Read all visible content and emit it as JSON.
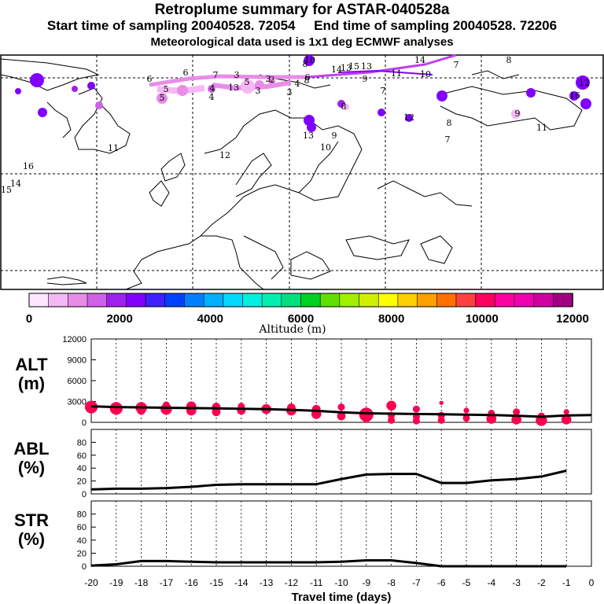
{
  "header": {
    "title": "Retroplume summary for ASTAR-040528a",
    "sampling": "Start time of sampling 20040528. 72054     End time of sampling 20040528. 72206",
    "met": "Meteorological data used is 1x1 deg ECMWF analyses"
  },
  "map": {
    "label_numbers": [
      "6",
      "5",
      "5",
      "4",
      "4",
      "7",
      "3",
      "13",
      "3",
      "5",
      "3",
      "3",
      "4",
      "6",
      "6",
      "2",
      "10",
      "8",
      "9",
      "11",
      "13",
      "14",
      "7",
      "8",
      "10",
      "12",
      "7",
      "16",
      "13",
      "14",
      "15",
      "12",
      "8",
      "11",
      "9",
      "9",
      "7",
      "8",
      "8",
      "10",
      "11",
      "12",
      "14",
      "15",
      "16",
      "13"
    ]
  },
  "colorbar": {
    "ticks": [
      "0",
      "2000",
      "4000",
      "6000",
      "8000",
      "10000",
      "12000"
    ],
    "label": "Altitude (m)",
    "colors": [
      "#ffe6ff",
      "#f4b8f4",
      "#e88ce8",
      "#d060e8",
      "#a020f0",
      "#8000ff",
      "#4020ff",
      "#0040ff",
      "#0080ff",
      "#00b0ff",
      "#00d8ff",
      "#00f0e0",
      "#00f0b0",
      "#00e080",
      "#00d020",
      "#60e000",
      "#a0f000",
      "#d0f000",
      "#ffff00",
      "#ffd000",
      "#ffa000",
      "#ff7000",
      "#ff4040",
      "#ff0060",
      "#ff00a0",
      "#f000b0",
      "#d000a0",
      "#a00080"
    ]
  },
  "chart_data": [
    {
      "type": "line",
      "ylabel": "ALT\n(m)",
      "xlabel": "Travel time (days)",
      "x": [
        -20,
        -19,
        -18,
        -17,
        -16,
        -15,
        -14,
        -13,
        -12,
        -11,
        -10,
        -9,
        -8,
        -7,
        -6,
        -5,
        -4,
        -3,
        -2,
        -1,
        0
      ],
      "values": [
        2300,
        2200,
        2150,
        2100,
        2050,
        2000,
        1950,
        1900,
        1800,
        1650,
        1450,
        1300,
        1250,
        1200,
        1150,
        1100,
        1050,
        950,
        800,
        1000,
        1050
      ],
      "ylim": [
        0,
        12000
      ],
      "yticks": [
        "12000",
        "9000",
        "6000",
        "3000",
        "0"
      ],
      "dots": [
        {
          "x": -20,
          "y": 2200,
          "s": 9
        },
        {
          "x": -19,
          "y": 2000,
          "s": 9
        },
        {
          "x": -19,
          "y": 1800,
          "s": 6
        },
        {
          "x": -18,
          "y": 2100,
          "s": 8
        },
        {
          "x": -18,
          "y": 1700,
          "s": 6
        },
        {
          "x": -17,
          "y": 2500,
          "s": 5
        },
        {
          "x": -17,
          "y": 1900,
          "s": 8
        },
        {
          "x": -16,
          "y": 2300,
          "s": 7
        },
        {
          "x": -16,
          "y": 1700,
          "s": 7
        },
        {
          "x": -15,
          "y": 2200,
          "s": 6
        },
        {
          "x": -15,
          "y": 1500,
          "s": 6
        },
        {
          "x": -14,
          "y": 2300,
          "s": 5
        },
        {
          "x": -14,
          "y": 1700,
          "s": 6
        },
        {
          "x": -13,
          "y": 1900,
          "s": 7
        },
        {
          "x": -12,
          "y": 2100,
          "s": 6
        },
        {
          "x": -12,
          "y": 1700,
          "s": 7
        },
        {
          "x": -11,
          "y": 1900,
          "s": 6
        },
        {
          "x": -11,
          "y": 1200,
          "s": 7
        },
        {
          "x": -10,
          "y": 2200,
          "s": 5
        },
        {
          "x": -10,
          "y": 900,
          "s": 6
        },
        {
          "x": -9,
          "y": 1100,
          "s": 10
        },
        {
          "x": -9,
          "y": 600,
          "s": 6
        },
        {
          "x": -8,
          "y": 2400,
          "s": 7
        },
        {
          "x": -8,
          "y": 1000,
          "s": 5
        },
        {
          "x": -8,
          "y": 300,
          "s": 5
        },
        {
          "x": -7,
          "y": 1900,
          "s": 5
        },
        {
          "x": -7,
          "y": 800,
          "s": 5
        },
        {
          "x": -7,
          "y": 200,
          "s": 5
        },
        {
          "x": -6,
          "y": 2800,
          "s": 3
        },
        {
          "x": -6,
          "y": 1000,
          "s": 5
        },
        {
          "x": -6,
          "y": 300,
          "s": 5
        },
        {
          "x": -5,
          "y": 1700,
          "s": 4
        },
        {
          "x": -5,
          "y": 600,
          "s": 5
        },
        {
          "x": -4,
          "y": 1300,
          "s": 5
        },
        {
          "x": -4,
          "y": 500,
          "s": 7
        },
        {
          "x": -3,
          "y": 1500,
          "s": 5
        },
        {
          "x": -3,
          "y": 400,
          "s": 7
        },
        {
          "x": -2,
          "y": 900,
          "s": 5
        },
        {
          "x": -2,
          "y": 300,
          "s": 8
        },
        {
          "x": -1,
          "y": 1500,
          "s": 4
        },
        {
          "x": -1,
          "y": 400,
          "s": 7
        }
      ]
    },
    {
      "type": "line",
      "ylabel": "ABL\n(%)",
      "x": [
        -20,
        -19,
        -18,
        -17,
        -16,
        -15,
        -14,
        -13,
        -12,
        -11,
        -10,
        -9,
        -8,
        -7,
        -6,
        -5,
        -4,
        -3,
        -2,
        -1
      ],
      "values": [
        7,
        8,
        8,
        9,
        11,
        14,
        15,
        15,
        15,
        15,
        23,
        30,
        31,
        31,
        17,
        17,
        21,
        23,
        27,
        36
      ],
      "ylim": [
        0,
        100
      ],
      "yticks": [
        "80",
        "60",
        "40",
        "20",
        "0"
      ]
    },
    {
      "type": "line",
      "ylabel": "STR\n(%)",
      "x": [
        -20,
        -19,
        -18,
        -17,
        -16,
        -15,
        -14,
        -13,
        -12,
        -11,
        -10,
        -9,
        -8,
        -7,
        -6,
        -5,
        -4,
        -3,
        -2,
        -1
      ],
      "values": [
        1,
        3,
        8,
        8,
        7,
        6,
        6,
        6,
        6,
        6,
        7,
        9,
        9,
        5,
        0,
        0,
        0,
        0,
        0,
        0
      ],
      "ylim": [
        0,
        100
      ],
      "yticks": [
        "80",
        "60",
        "40",
        "20",
        "0"
      ]
    }
  ],
  "xaxis": {
    "ticks": [
      "-20",
      "-19",
      "-18",
      "-17",
      "-16",
      "-15",
      "-14",
      "-13",
      "-12",
      "-11",
      "-10",
      "-9",
      "-8",
      "-7",
      "-6",
      "-5",
      "-4",
      "-3",
      "-2",
      "-1",
      "0"
    ],
    "label": "Travel time (days)"
  }
}
